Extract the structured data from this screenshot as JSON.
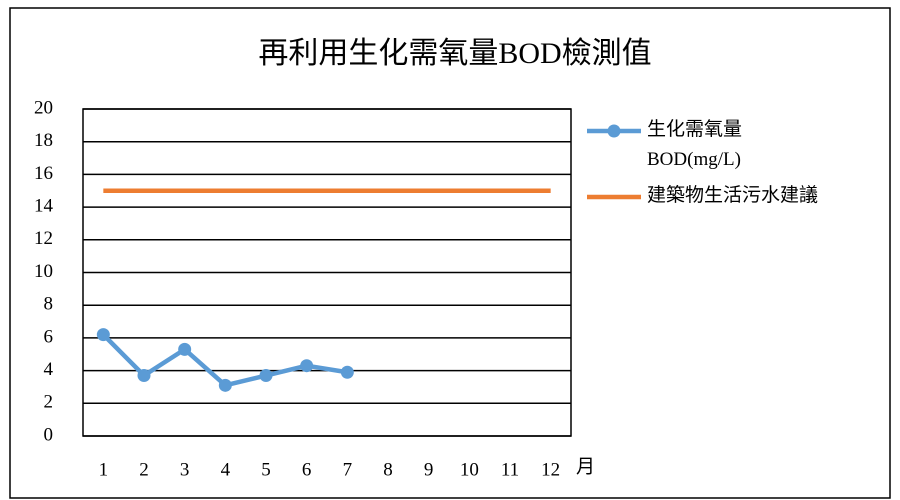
{
  "chart_data": {
    "type": "line",
    "title": "再利用生化需氧量BOD檢測值",
    "x_label": "月",
    "categories": [
      "1",
      "2",
      "3",
      "4",
      "5",
      "6",
      "7",
      "8",
      "9",
      "10",
      "11",
      "12"
    ],
    "series": [
      {
        "name": "生化需氧量BOD(mg/L)",
        "color": "#5b9bd5",
        "marker": true,
        "values": [
          6.2,
          3.7,
          5.3,
          3.1,
          3.7,
          4.3,
          3.9,
          null,
          null,
          null,
          null,
          null
        ]
      },
      {
        "name": "建築物生活污水建議",
        "color": "#ed7d31",
        "marker": false,
        "values": [
          15,
          15,
          15,
          15,
          15,
          15,
          15,
          15,
          15,
          15,
          15,
          15
        ]
      }
    ],
    "ylim": [
      0,
      20
    ],
    "yticks": [
      0,
      2,
      4,
      6,
      8,
      10,
      12,
      14,
      16,
      18,
      20
    ],
    "grid": true,
    "legend": "right"
  }
}
